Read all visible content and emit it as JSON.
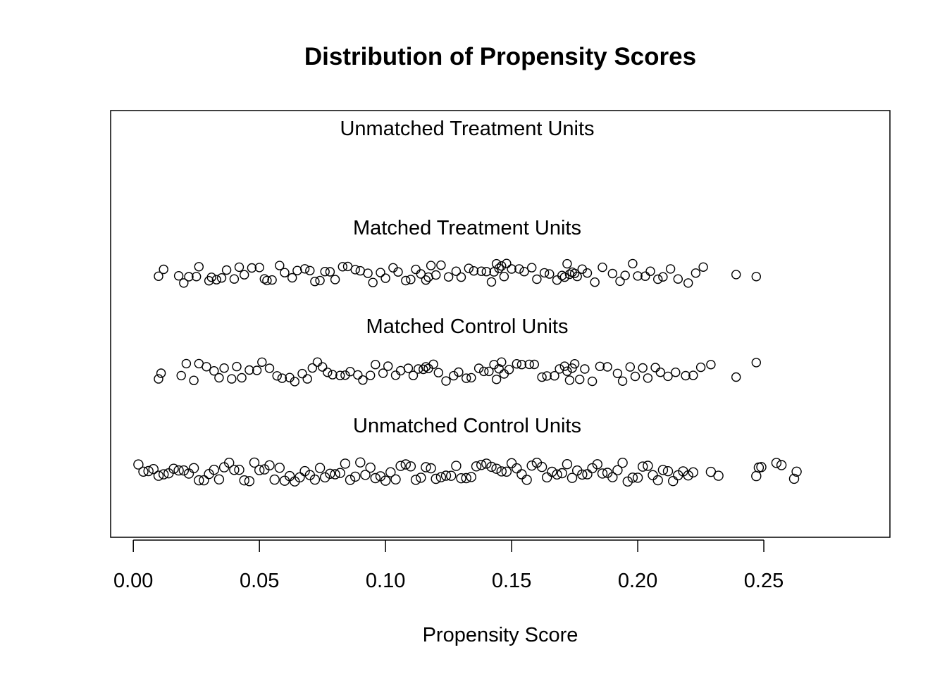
{
  "chart_data": {
    "type": "scatter",
    "title": "Distribution of Propensity Scores",
    "xlabel": "Propensity Score",
    "ylabel": "",
    "xlim": [
      -0.009,
      0.3
    ],
    "xticks": [
      "0.00",
      "0.05",
      "0.10",
      "0.15",
      "0.20",
      "0.25"
    ],
    "xtick_values": [
      0.0,
      0.05,
      0.1,
      0.15,
      0.2,
      0.25
    ],
    "grid": false,
    "marker": "open-circle",
    "color": "#000000",
    "series": [
      {
        "name": "Unmatched Treatment Units",
        "values": []
      },
      {
        "name": "Matched Treatment Units",
        "values": [
          0.01,
          0.012,
          0.018,
          0.02,
          0.022,
          0.025,
          0.026,
          0.03,
          0.031,
          0.033,
          0.035,
          0.037,
          0.04,
          0.042,
          0.044,
          0.047,
          0.05,
          0.052,
          0.053,
          0.055,
          0.058,
          0.06,
          0.063,
          0.065,
          0.068,
          0.07,
          0.072,
          0.074,
          0.076,
          0.078,
          0.08,
          0.083,
          0.085,
          0.088,
          0.09,
          0.093,
          0.095,
          0.098,
          0.1,
          0.103,
          0.105,
          0.108,
          0.11,
          0.112,
          0.114,
          0.116,
          0.117,
          0.118,
          0.12,
          0.122,
          0.125,
          0.128,
          0.13,
          0.133,
          0.135,
          0.138,
          0.14,
          0.142,
          0.143,
          0.144,
          0.145,
          0.146,
          0.147,
          0.148,
          0.15,
          0.153,
          0.155,
          0.158,
          0.16,
          0.163,
          0.165,
          0.168,
          0.17,
          0.171,
          0.172,
          0.173,
          0.174,
          0.175,
          0.176,
          0.178,
          0.18,
          0.183,
          0.186,
          0.19,
          0.193,
          0.195,
          0.198,
          0.2,
          0.203,
          0.205,
          0.208,
          0.21,
          0.213,
          0.216,
          0.22,
          0.223,
          0.226,
          0.239,
          0.247
        ]
      },
      {
        "name": "Matched Control Units",
        "values": [
          0.01,
          0.011,
          0.019,
          0.021,
          0.024,
          0.026,
          0.029,
          0.032,
          0.034,
          0.036,
          0.039,
          0.041,
          0.043,
          0.046,
          0.049,
          0.051,
          0.054,
          0.057,
          0.059,
          0.062,
          0.064,
          0.067,
          0.069,
          0.071,
          0.073,
          0.075,
          0.077,
          0.079,
          0.082,
          0.084,
          0.086,
          0.089,
          0.091,
          0.094,
          0.096,
          0.099,
          0.101,
          0.104,
          0.106,
          0.109,
          0.111,
          0.113,
          0.115,
          0.116,
          0.117,
          0.119,
          0.121,
          0.124,
          0.127,
          0.129,
          0.132,
          0.134,
          0.137,
          0.139,
          0.141,
          0.143,
          0.144,
          0.145,
          0.146,
          0.147,
          0.149,
          0.152,
          0.154,
          0.157,
          0.159,
          0.162,
          0.164,
          0.167,
          0.169,
          0.171,
          0.172,
          0.173,
          0.174,
          0.175,
          0.177,
          0.179,
          0.182,
          0.185,
          0.188,
          0.192,
          0.194,
          0.197,
          0.199,
          0.202,
          0.204,
          0.207,
          0.209,
          0.212,
          0.215,
          0.219,
          0.222,
          0.225,
          0.229,
          0.239,
          0.247
        ]
      },
      {
        "name": "Unmatched Control Units",
        "values": [
          0.002,
          0.004,
          0.006,
          0.008,
          0.01,
          0.012,
          0.014,
          0.016,
          0.018,
          0.02,
          0.022,
          0.024,
          0.026,
          0.028,
          0.03,
          0.032,
          0.034,
          0.036,
          0.038,
          0.04,
          0.042,
          0.044,
          0.046,
          0.048,
          0.05,
          0.052,
          0.054,
          0.056,
          0.058,
          0.06,
          0.062,
          0.064,
          0.066,
          0.068,
          0.07,
          0.072,
          0.074,
          0.076,
          0.078,
          0.08,
          0.082,
          0.084,
          0.086,
          0.088,
          0.09,
          0.092,
          0.094,
          0.096,
          0.098,
          0.1,
          0.102,
          0.104,
          0.106,
          0.108,
          0.11,
          0.112,
          0.114,
          0.116,
          0.118,
          0.12,
          0.122,
          0.124,
          0.126,
          0.128,
          0.13,
          0.132,
          0.134,
          0.136,
          0.138,
          0.14,
          0.142,
          0.144,
          0.146,
          0.148,
          0.15,
          0.152,
          0.154,
          0.156,
          0.158,
          0.16,
          0.162,
          0.164,
          0.166,
          0.168,
          0.17,
          0.172,
          0.174,
          0.176,
          0.178,
          0.18,
          0.182,
          0.184,
          0.186,
          0.188,
          0.19,
          0.192,
          0.194,
          0.196,
          0.198,
          0.2,
          0.202,
          0.204,
          0.206,
          0.208,
          0.21,
          0.212,
          0.214,
          0.216,
          0.218,
          0.22,
          0.222,
          0.229,
          0.232,
          0.247,
          0.248,
          0.249,
          0.255,
          0.257,
          0.262,
          0.263
        ]
      }
    ]
  }
}
